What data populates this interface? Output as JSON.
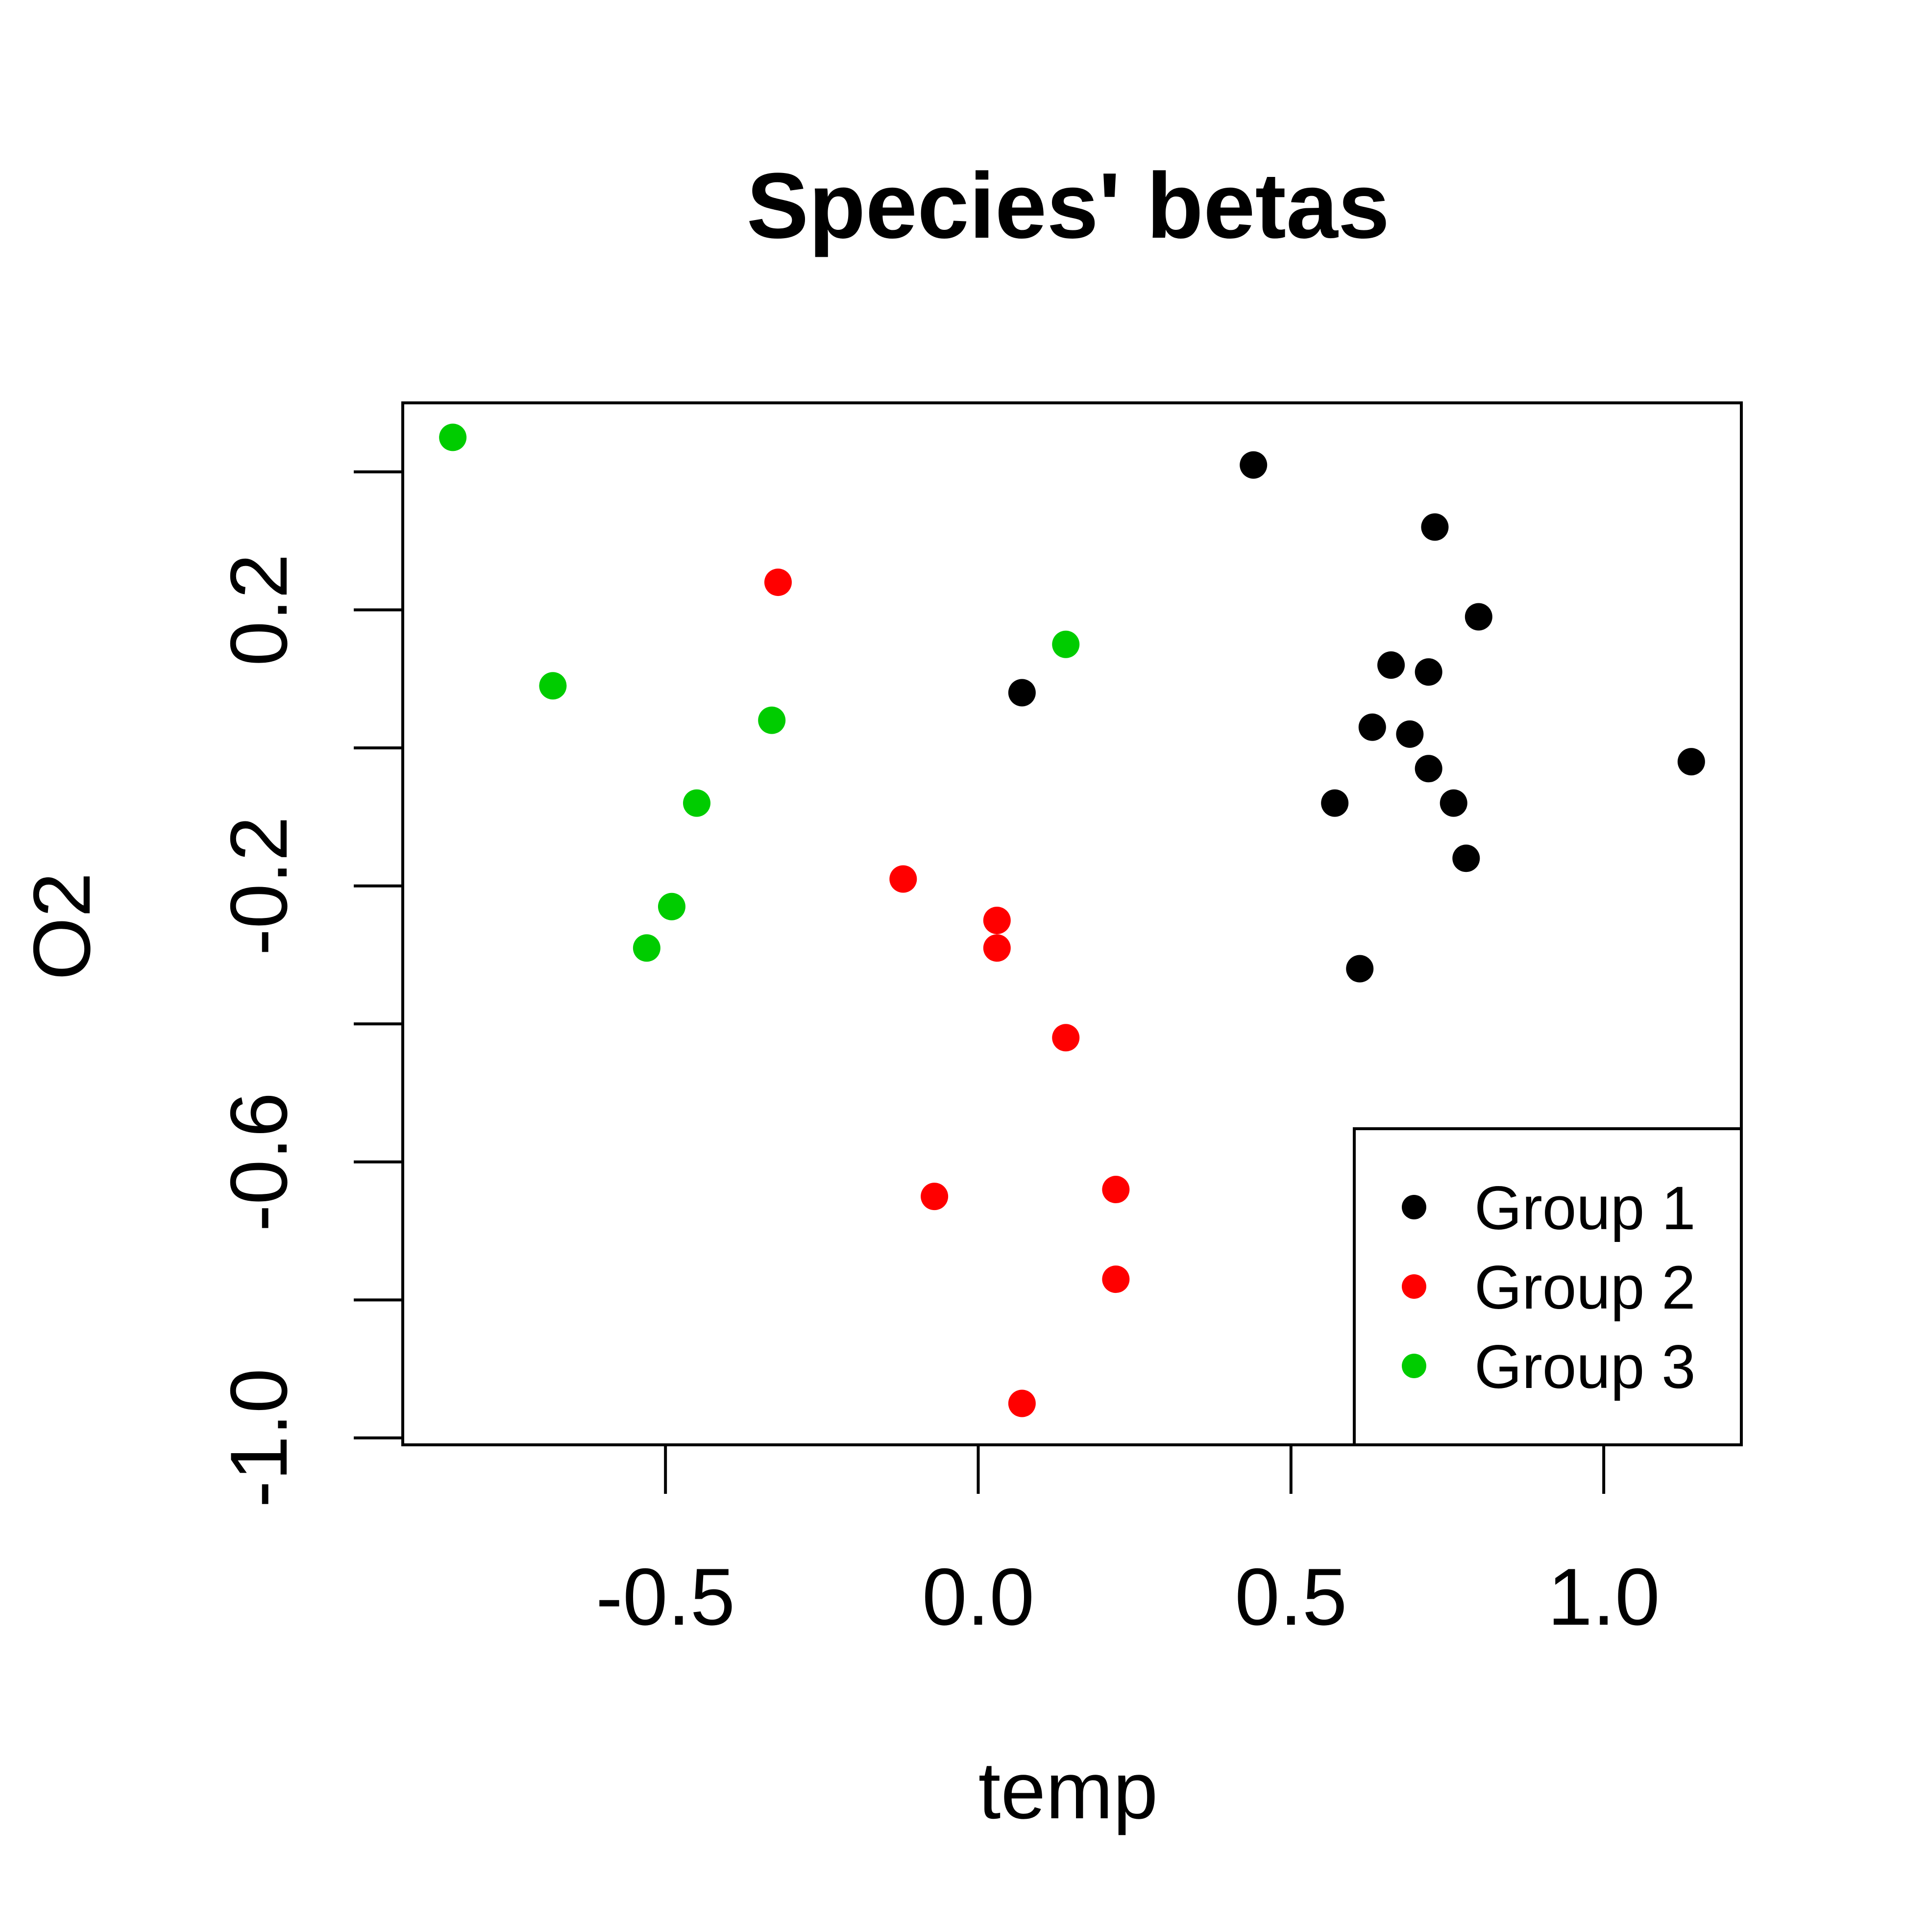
{
  "chart_data": {
    "type": "scatter",
    "title": "Species' betas",
    "xlabel": "temp",
    "ylabel": "O2",
    "xlim": [
      -0.92,
      1.22
    ],
    "ylim": [
      -1.01,
      0.5
    ],
    "x_ticks": [
      -0.5,
      0.0,
      0.5,
      1.0
    ],
    "x_tick_labels": [
      "-0.5",
      "0.0",
      "0.5",
      "1.0"
    ],
    "y_ticks": [
      -1.0,
      -0.8,
      -0.6,
      -0.4,
      -0.2,
      0.0,
      0.2,
      0.4
    ],
    "y_tick_labels": [
      "-1.0",
      "",
      "-0.6",
      "",
      "-0.2",
      "",
      "0.2",
      ""
    ],
    "grid": false,
    "legend": {
      "position": "bottom-right"
    },
    "series": [
      {
        "name": "Group 1",
        "color": "#000000",
        "points": [
          {
            "x": 0.44,
            "y": 0.41
          },
          {
            "x": 0.73,
            "y": 0.32
          },
          {
            "x": 0.8,
            "y": 0.19
          },
          {
            "x": 0.66,
            "y": 0.12
          },
          {
            "x": 0.72,
            "y": 0.11
          },
          {
            "x": 0.07,
            "y": 0.08
          },
          {
            "x": 0.63,
            "y": 0.03
          },
          {
            "x": 0.69,
            "y": 0.02
          },
          {
            "x": 0.72,
            "y": -0.03
          },
          {
            "x": 1.14,
            "y": -0.02
          },
          {
            "x": 0.57,
            "y": -0.08
          },
          {
            "x": 0.76,
            "y": -0.08
          },
          {
            "x": 0.78,
            "y": -0.16
          },
          {
            "x": 0.61,
            "y": -0.32
          }
        ]
      },
      {
        "name": "Group 2",
        "color": "#ff0000",
        "points": [
          {
            "x": -0.32,
            "y": 0.24
          },
          {
            "x": -0.12,
            "y": -0.19
          },
          {
            "x": 0.03,
            "y": -0.25
          },
          {
            "x": 0.03,
            "y": -0.29
          },
          {
            "x": 0.14,
            "y": -0.42
          },
          {
            "x": 0.22,
            "y": -0.64
          },
          {
            "x": -0.07,
            "y": -0.65
          },
          {
            "x": 0.22,
            "y": -0.77
          },
          {
            "x": 0.07,
            "y": -0.95
          }
        ]
      },
      {
        "name": "Group 3",
        "color": "#00cc00",
        "points": [
          {
            "x": -0.84,
            "y": 0.45
          },
          {
            "x": 0.14,
            "y": 0.15
          },
          {
            "x": -0.68,
            "y": 0.09
          },
          {
            "x": -0.33,
            "y": 0.04
          },
          {
            "x": -0.45,
            "y": -0.08
          },
          {
            "x": -0.49,
            "y": -0.23
          },
          {
            "x": -0.53,
            "y": -0.29
          }
        ]
      }
    ]
  }
}
